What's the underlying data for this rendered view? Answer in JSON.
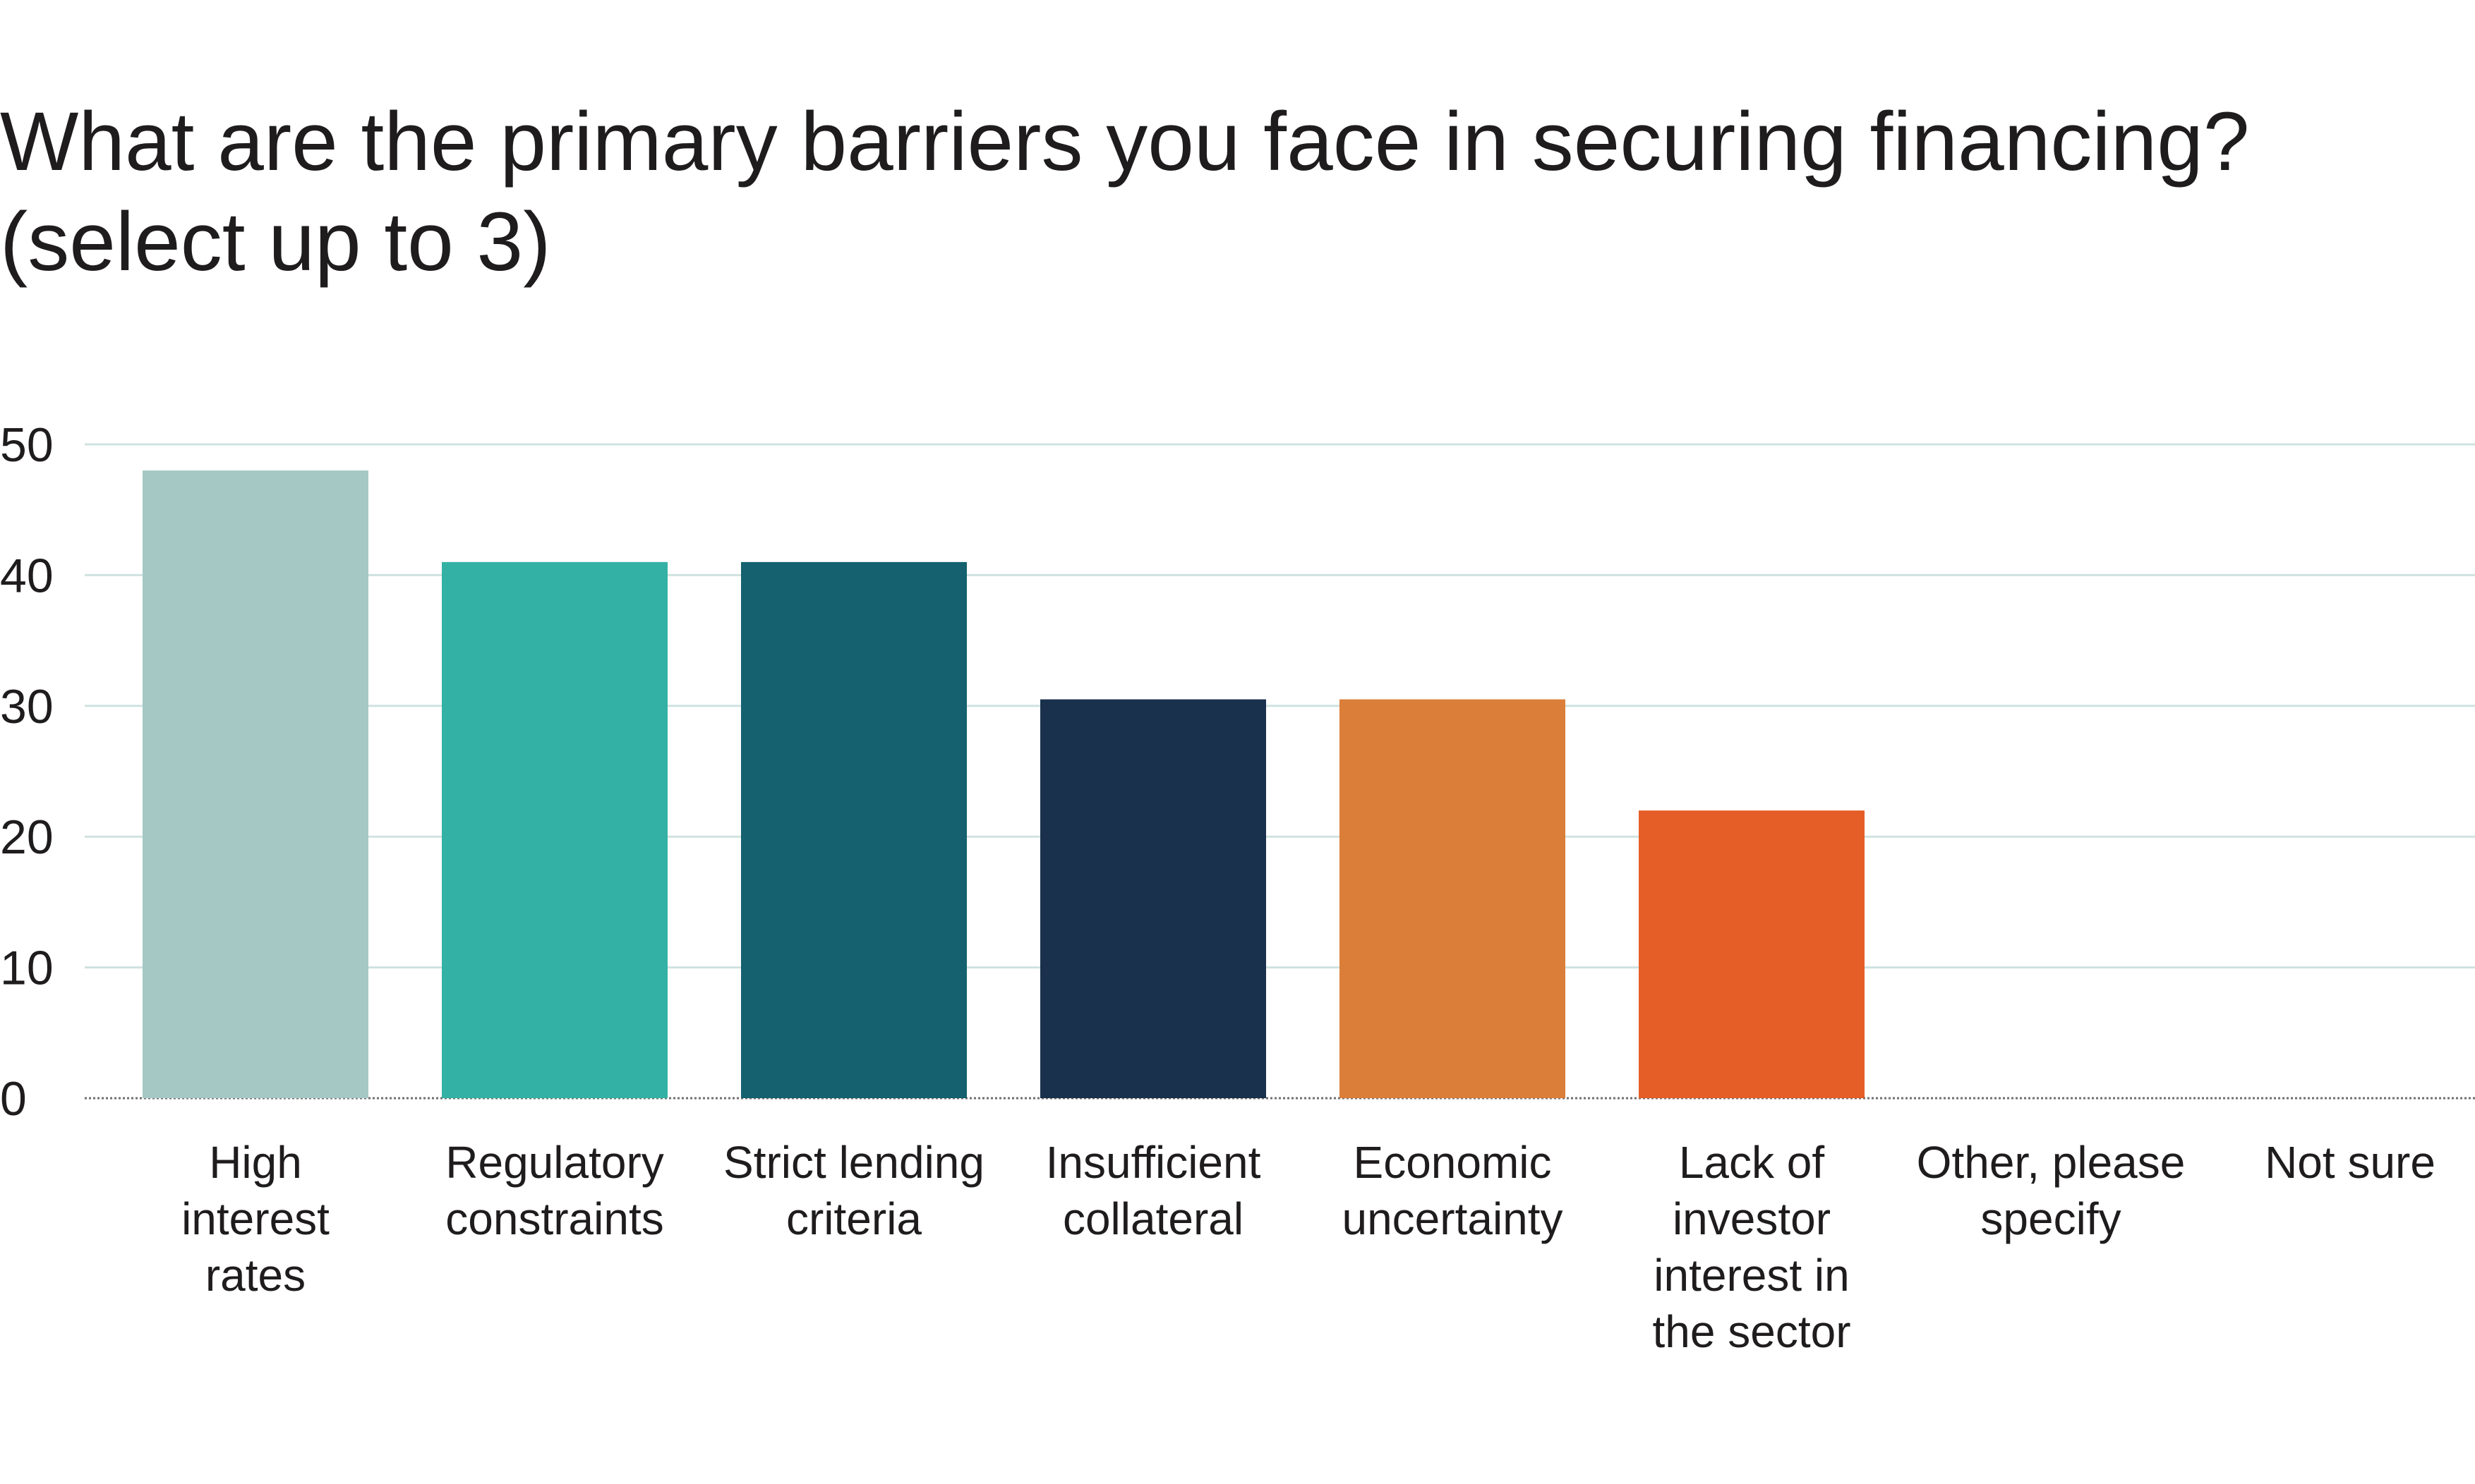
{
  "chart_data": {
    "type": "bar",
    "title_lines": [
      "What are the primary barriers you face in securing financing?",
      "(select up to 3)"
    ],
    "categories": [
      [
        "High",
        "interest",
        "rates"
      ],
      [
        "Regulatory",
        "constraints"
      ],
      [
        "Strict lending",
        "criteria"
      ],
      [
        "Insufficient",
        "collateral"
      ],
      [
        "Economic",
        "uncertainty"
      ],
      [
        "Lack of",
        "investor",
        "interest in",
        "the sector"
      ],
      [
        "Other, please",
        "specify"
      ],
      [
        "Not sure"
      ]
    ],
    "values": [
      48,
      41,
      41,
      30.5,
      30.5,
      22,
      0,
      0
    ],
    "colors": [
      "#a5c8c4",
      "#33b1a4",
      "#15616f",
      "#19314c",
      "#db7e39",
      "#e55e27",
      "#cccccc",
      "#cccccc"
    ],
    "ylim": [
      0,
      50
    ],
    "yticks": [
      0,
      10,
      20,
      30,
      40,
      50
    ],
    "grid": true,
    "grid_color": "#cfe2e0",
    "legend": "none"
  }
}
